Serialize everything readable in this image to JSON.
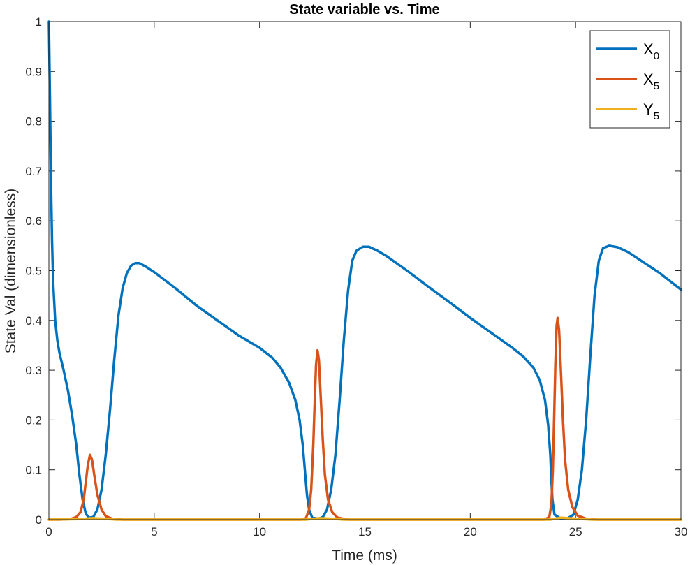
{
  "chart_data": {
    "type": "line",
    "title": "State variable vs. Time",
    "xlabel": "Time (ms)",
    "ylabel": "State Val (dimensionless)",
    "xlim": [
      0,
      30
    ],
    "ylim": [
      0,
      1
    ],
    "xticks": [
      0,
      5,
      10,
      15,
      20,
      25,
      30
    ],
    "yticks": [
      0,
      0.1,
      0.2,
      0.3,
      0.4,
      0.5,
      0.6,
      0.7,
      0.8,
      0.9,
      1
    ],
    "ytick_labels": [
      "0",
      "0.1",
      "0.2",
      "0.3",
      "0.4",
      "0.5",
      "0.6",
      "0.7",
      "0.8",
      "0.9",
      "1"
    ],
    "grid": false,
    "legend_position": "top-right",
    "series": [
      {
        "name_main": "X",
        "name_sub": "0",
        "color": "#0072BD",
        "points": [
          [
            0,
            1.0
          ],
          [
            0.05,
            0.85
          ],
          [
            0.1,
            0.68
          ],
          [
            0.15,
            0.56
          ],
          [
            0.2,
            0.48
          ],
          [
            0.3,
            0.4
          ],
          [
            0.4,
            0.36
          ],
          [
            0.5,
            0.335
          ],
          [
            0.7,
            0.3
          ],
          [
            0.9,
            0.26
          ],
          [
            1.1,
            0.21
          ],
          [
            1.3,
            0.15
          ],
          [
            1.45,
            0.09
          ],
          [
            1.6,
            0.04
          ],
          [
            1.75,
            0.012
          ],
          [
            1.9,
            0.004
          ],
          [
            2.1,
            0.005
          ],
          [
            2.3,
            0.02
          ],
          [
            2.5,
            0.06
          ],
          [
            2.7,
            0.13
          ],
          [
            2.9,
            0.22
          ],
          [
            3.1,
            0.32
          ],
          [
            3.3,
            0.41
          ],
          [
            3.5,
            0.465
          ],
          [
            3.7,
            0.495
          ],
          [
            3.9,
            0.51
          ],
          [
            4.1,
            0.515
          ],
          [
            4.3,
            0.515
          ],
          [
            4.6,
            0.508
          ],
          [
            5,
            0.497
          ],
          [
            6,
            0.465
          ],
          [
            7,
            0.43
          ],
          [
            8,
            0.4
          ],
          [
            9,
            0.37
          ],
          [
            10,
            0.345
          ],
          [
            10.6,
            0.325
          ],
          [
            11,
            0.305
          ],
          [
            11.4,
            0.275
          ],
          [
            11.7,
            0.24
          ],
          [
            11.9,
            0.2
          ],
          [
            12.05,
            0.15
          ],
          [
            12.15,
            0.1
          ],
          [
            12.25,
            0.05
          ],
          [
            12.35,
            0.02
          ],
          [
            12.5,
            0.004
          ],
          [
            12.8,
            0.002
          ],
          [
            13.0,
            0.005
          ],
          [
            13.2,
            0.02
          ],
          [
            13.4,
            0.06
          ],
          [
            13.6,
            0.13
          ],
          [
            13.8,
            0.24
          ],
          [
            14.0,
            0.36
          ],
          [
            14.2,
            0.46
          ],
          [
            14.4,
            0.52
          ],
          [
            14.6,
            0.54
          ],
          [
            14.9,
            0.548
          ],
          [
            15.2,
            0.548
          ],
          [
            15.6,
            0.54
          ],
          [
            16,
            0.53
          ],
          [
            17,
            0.5
          ],
          [
            18,
            0.468
          ],
          [
            19,
            0.437
          ],
          [
            20,
            0.405
          ],
          [
            21,
            0.375
          ],
          [
            22,
            0.345
          ],
          [
            22.5,
            0.328
          ],
          [
            23,
            0.305
          ],
          [
            23.3,
            0.28
          ],
          [
            23.55,
            0.24
          ],
          [
            23.7,
            0.19
          ],
          [
            23.8,
            0.13
          ],
          [
            23.85,
            0.08
          ],
          [
            23.9,
            0.04
          ],
          [
            24.0,
            0.01
          ],
          [
            24.3,
            0.002
          ],
          [
            24.6,
            0.002
          ],
          [
            24.9,
            0.01
          ],
          [
            25.1,
            0.04
          ],
          [
            25.3,
            0.1
          ],
          [
            25.5,
            0.2
          ],
          [
            25.7,
            0.33
          ],
          [
            25.9,
            0.45
          ],
          [
            26.1,
            0.52
          ],
          [
            26.3,
            0.545
          ],
          [
            26.6,
            0.55
          ],
          [
            27,
            0.547
          ],
          [
            27.5,
            0.537
          ],
          [
            28,
            0.523
          ],
          [
            29,
            0.495
          ],
          [
            30,
            0.462
          ]
        ]
      },
      {
        "name_main": "X",
        "name_sub": "5",
        "color": "#D95319",
        "points": [
          [
            0,
            0.0
          ],
          [
            0.5,
            0.0
          ],
          [
            1.0,
            0.001
          ],
          [
            1.3,
            0.005
          ],
          [
            1.5,
            0.015
          ],
          [
            1.65,
            0.04
          ],
          [
            1.75,
            0.075
          ],
          [
            1.85,
            0.11
          ],
          [
            1.95,
            0.13
          ],
          [
            2.05,
            0.12
          ],
          [
            2.15,
            0.09
          ],
          [
            2.3,
            0.05
          ],
          [
            2.5,
            0.02
          ],
          [
            2.7,
            0.007
          ],
          [
            3.0,
            0.002
          ],
          [
            3.5,
            0.0
          ],
          [
            12.0,
            0.0
          ],
          [
            12.2,
            0.003
          ],
          [
            12.35,
            0.02
          ],
          [
            12.45,
            0.06
          ],
          [
            12.55,
            0.15
          ],
          [
            12.62,
            0.24
          ],
          [
            12.68,
            0.31
          ],
          [
            12.75,
            0.34
          ],
          [
            12.82,
            0.32
          ],
          [
            12.9,
            0.25
          ],
          [
            13.0,
            0.16
          ],
          [
            13.1,
            0.09
          ],
          [
            13.25,
            0.04
          ],
          [
            13.45,
            0.015
          ],
          [
            13.7,
            0.004
          ],
          [
            14.2,
            0.0
          ],
          [
            23.5,
            0.0
          ],
          [
            23.75,
            0.005
          ],
          [
            23.85,
            0.03
          ],
          [
            23.92,
            0.1
          ],
          [
            23.98,
            0.2
          ],
          [
            24.04,
            0.31
          ],
          [
            24.1,
            0.39
          ],
          [
            24.15,
            0.405
          ],
          [
            24.22,
            0.38
          ],
          [
            24.3,
            0.3
          ],
          [
            24.4,
            0.2
          ],
          [
            24.5,
            0.12
          ],
          [
            24.65,
            0.06
          ],
          [
            24.85,
            0.025
          ],
          [
            25.1,
            0.008
          ],
          [
            25.5,
            0.002
          ],
          [
            26.0,
            0.0
          ],
          [
            30,
            0.0
          ]
        ]
      },
      {
        "name_main": "Y",
        "name_sub": "5",
        "color": "#EDB120",
        "points": [
          [
            0,
            0.0
          ],
          [
            1.5,
            0.001
          ],
          [
            2.0,
            0.003
          ],
          [
            2.6,
            0.002
          ],
          [
            3.2,
            0.0
          ],
          [
            12.2,
            0.0
          ],
          [
            12.8,
            0.003
          ],
          [
            13.4,
            0.002
          ],
          [
            14.0,
            0.0
          ],
          [
            23.8,
            0.0
          ],
          [
            24.3,
            0.004
          ],
          [
            25.0,
            0.002
          ],
          [
            25.8,
            0.0
          ],
          [
            30,
            0.0
          ]
        ]
      }
    ]
  }
}
